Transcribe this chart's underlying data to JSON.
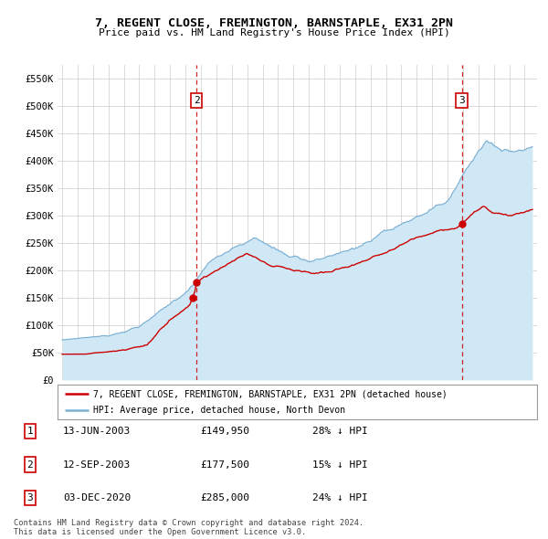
{
  "title": "7, REGENT CLOSE, FREMINGTON, BARNSTAPLE, EX31 2PN",
  "subtitle": "Price paid vs. HM Land Registry's House Price Index (HPI)",
  "legend_line1": "7, REGENT CLOSE, FREMINGTON, BARNSTAPLE, EX31 2PN (detached house)",
  "legend_line2": "HPI: Average price, detached house, North Devon",
  "footer1": "Contains HM Land Registry data © Crown copyright and database right 2024.",
  "footer2": "This data is licensed under the Open Government Licence v3.0.",
  "transactions": [
    {
      "num": 1,
      "date": "13-JUN-2003",
      "price": "£149,950",
      "pct": "28% ↓ HPI",
      "year_x": 2003.45,
      "price_y": 149950
    },
    {
      "num": 2,
      "date": "12-SEP-2003",
      "price": "£177,500",
      "pct": "15% ↓ HPI",
      "year_x": 2003.71,
      "price_y": 177500
    },
    {
      "num": 3,
      "date": "03-DEC-2020",
      "price": "£285,000",
      "pct": "24% ↓ HPI",
      "year_x": 2020.92,
      "price_y": 285000
    }
  ],
  "vlines": [
    {
      "year": 2003.71,
      "label": "2"
    },
    {
      "year": 2020.92,
      "label": "3"
    }
  ],
  "ylim": [
    0,
    575000
  ],
  "yticks": [
    0,
    50000,
    100000,
    150000,
    200000,
    250000,
    300000,
    350000,
    400000,
    450000,
    500000,
    550000
  ],
  "ytick_labels": [
    "£0",
    "£50K",
    "£100K",
    "£150K",
    "£200K",
    "£250K",
    "£300K",
    "£350K",
    "£400K",
    "£450K",
    "£500K",
    "£550K"
  ],
  "xstart": 1994.7,
  "xend": 2025.8,
  "xticks": [
    1995,
    1996,
    1997,
    1998,
    1999,
    2000,
    2001,
    2002,
    2003,
    2004,
    2005,
    2006,
    2007,
    2008,
    2009,
    2010,
    2011,
    2012,
    2013,
    2014,
    2015,
    2016,
    2017,
    2018,
    2019,
    2020,
    2021,
    2022,
    2023,
    2024,
    2025
  ],
  "red_color": "#cc0000",
  "blue_color": "#7ab0d4",
  "blue_fill": "#d0e8f5",
  "grid_color": "#cccccc",
  "bg_color": "#ffffff"
}
